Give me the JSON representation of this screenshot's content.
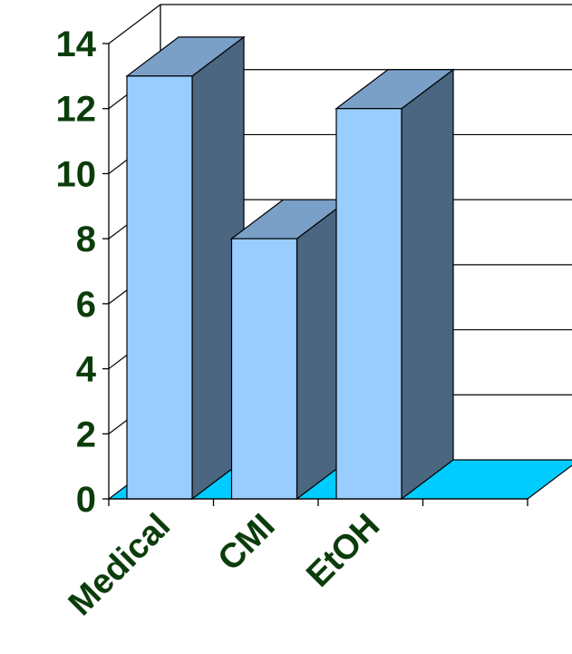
{
  "chart_data": {
    "type": "bar",
    "style": "3d",
    "title": "",
    "xlabel": "",
    "ylabel": "",
    "categories": [
      "Medical",
      "CMI",
      "EtOH"
    ],
    "values": [
      13,
      8,
      12
    ],
    "ylim": [
      0,
      14
    ],
    "yticks": [
      0,
      2,
      4,
      6,
      8,
      10,
      12,
      14
    ],
    "x_slots": 4,
    "grid": true,
    "legend": "none",
    "colors": {
      "bar_front": "#99ccff",
      "bar_top": "#7aa0c8",
      "bar_side": "#4a6680",
      "floor": "#00ccff",
      "axis_text": "#0b3d0b",
      "lines": "#000000"
    }
  }
}
